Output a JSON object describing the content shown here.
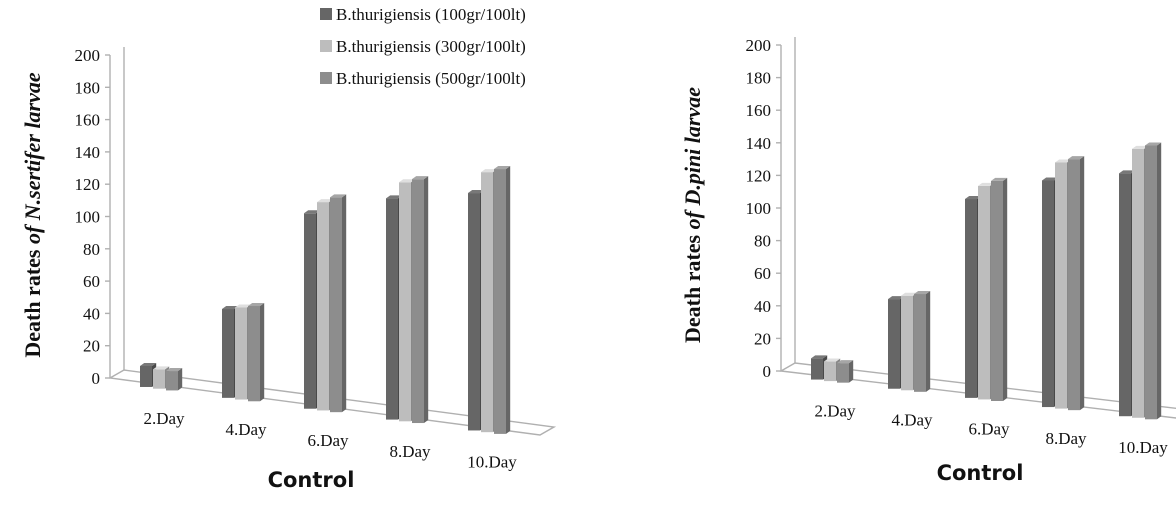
{
  "chart_data": [
    {
      "type": "bar",
      "categories": [
        "2.Day",
        "4.Day",
        "6.Day",
        "8.Day",
        "10.Day"
      ],
      "series": [
        {
          "name": "B.thurigiensis (100gr/100lt)",
          "values": [
            13,
            55,
            121,
            137,
            147
          ]
        },
        {
          "name": "B.thurigiensis (300gr/100lt)",
          "values": [
            12,
            57,
            129,
            148,
            161
          ]
        },
        {
          "name": "B.thurigiensis (500gr/100lt)",
          "values": [
            12,
            59,
            133,
            151,
            164
          ]
        }
      ],
      "ylabel_prefix": "Death rates ",
      "ylabel_species": "of N.sertifer larvae",
      "xlabel": "Control",
      "ylim": [
        0,
        200
      ],
      "yticks": [
        0,
        20,
        40,
        60,
        80,
        100,
        120,
        140,
        160,
        180,
        200
      ],
      "legend": "top-right",
      "grid": false
    },
    {
      "type": "bar",
      "categories": [
        "2.Day",
        "4.Day",
        "6.Day",
        "8.Day",
        "10.Day"
      ],
      "series": [
        {
          "name": "B.thurigiensis (100gr/100lt)",
          "values": [
            13,
            55,
            122,
            139,
            149
          ]
        },
        {
          "name": "B.thurigiensis (300gr/100lt)",
          "values": [
            12,
            58,
            131,
            151,
            165
          ]
        },
        {
          "name": "B.thurigiensis (500gr/100lt)",
          "values": [
            12,
            60,
            135,
            154,
            168
          ]
        }
      ],
      "ylabel_prefix": "Death rates ",
      "ylabel_species": "of D.pini  larvae",
      "xlabel": "Control",
      "ylim": [
        0,
        200
      ],
      "yticks": [
        0,
        20,
        40,
        60,
        80,
        100,
        120,
        140,
        160,
        180,
        200
      ],
      "grid": false
    }
  ],
  "colors": {
    "series": [
      "#666666",
      "#bdbdbd",
      "#8d8d8d"
    ],
    "axis": "#b0b0b0"
  }
}
